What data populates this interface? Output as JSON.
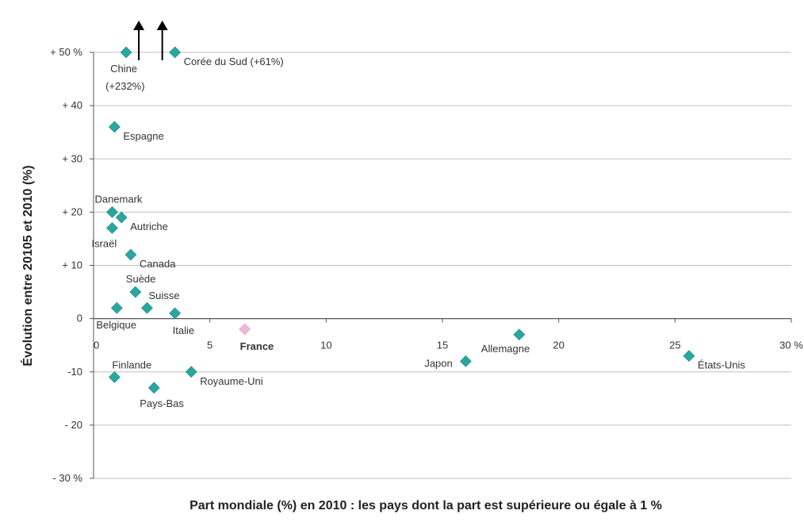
{
  "chart_data": {
    "type": "scatter",
    "xlabel": "Part mondiale (%) en 2010 : les pays dont la part est supérieure ou égale à 1 %",
    "ylabel": "Évolution entre 20105 et 2010 (%)",
    "xlim": [
      0,
      30
    ],
    "ylim": [
      -30,
      50
    ],
    "grid": "horizontal",
    "legend": "none",
    "colors": {
      "point": "#2aa6a0",
      "highlight": "#f0b8d8",
      "grid": "#bfbfbf",
      "axis": "#555555",
      "arrow": "#000000"
    },
    "x_ticks": [
      {
        "value": 0,
        "label": "0"
      },
      {
        "value": 5,
        "label": "5"
      },
      {
        "value": 10,
        "label": "10"
      },
      {
        "value": 15,
        "label": "15"
      },
      {
        "value": 20,
        "label": "20"
      },
      {
        "value": 25,
        "label": "25"
      },
      {
        "value": 30,
        "label": "30 %"
      }
    ],
    "y_ticks": [
      {
        "value": 50,
        "label": "+ 50 %"
      },
      {
        "value": 40,
        "label": "+ 40"
      },
      {
        "value": 30,
        "label": "+ 30"
      },
      {
        "value": 20,
        "label": "+ 20"
      },
      {
        "value": 10,
        "label": "+ 10"
      },
      {
        "value": 0,
        "label": "0"
      },
      {
        "value": -10,
        "label": "-10"
      },
      {
        "value": -20,
        "label": "- 20"
      },
      {
        "value": -30,
        "label": "- 30 %"
      }
    ],
    "points": [
      {
        "name": "Chine",
        "label": "Chine",
        "label2": "(+232%)",
        "x": 1.4,
        "y": 50,
        "highlight": false,
        "arrow": true,
        "anchor": "below"
      },
      {
        "name": "Corée du Sud",
        "label": "Corée du Sud (+61%)",
        "x": 3.5,
        "y": 50,
        "highlight": false,
        "arrow": true,
        "anchor": "right"
      },
      {
        "name": "Espagne",
        "label": "Espagne",
        "x": 0.9,
        "y": 36,
        "highlight": false,
        "anchor": "below-right"
      },
      {
        "name": "Danemark",
        "label": "Danemark",
        "x": 0.8,
        "y": 20,
        "highlight": false,
        "anchor": "above"
      },
      {
        "name": "Autriche",
        "label": "Autriche",
        "x": 1.2,
        "y": 19,
        "highlight": false,
        "anchor": "below-right"
      },
      {
        "name": "Israël",
        "label": "Israël",
        "x": 0.8,
        "y": 17,
        "highlight": false,
        "anchor": "below-left"
      },
      {
        "name": "Canada",
        "label": "Canada",
        "x": 1.6,
        "y": 12,
        "highlight": false,
        "anchor": "right"
      },
      {
        "name": "Suède",
        "label": "Suède",
        "x": 1.8,
        "y": 5,
        "highlight": false,
        "anchor": "above"
      },
      {
        "name": "Suisse",
        "label": "Suisse",
        "x": 2.3,
        "y": 2,
        "highlight": false,
        "anchor": "above-right"
      },
      {
        "name": "Belgique",
        "label": "Belgique",
        "x": 1.0,
        "y": 2,
        "highlight": false,
        "anchor": "below-far"
      },
      {
        "name": "Italie",
        "label": "Italie",
        "x": 3.5,
        "y": 1,
        "highlight": false,
        "anchor": "below-far"
      },
      {
        "name": "France",
        "label": "France",
        "x": 6.5,
        "y": -2,
        "highlight": true,
        "bold": true,
        "anchor": "below-far"
      },
      {
        "name": "Allemagne",
        "label": "Allemagne",
        "x": 18.3,
        "y": -3,
        "highlight": false,
        "anchor": "below-left"
      },
      {
        "name": "Japon",
        "label": "Japon",
        "x": 16.0,
        "y": -8,
        "highlight": false,
        "anchor": "left"
      },
      {
        "name": "États-Unis",
        "label": "États-Unis",
        "x": 25.6,
        "y": -7,
        "highlight": false,
        "anchor": "right"
      },
      {
        "name": "Finlande",
        "label": "Finlande",
        "x": 0.9,
        "y": -11,
        "highlight": false,
        "anchor": "above-high"
      },
      {
        "name": "Royaume-Uni",
        "label": "Royaume-Uni",
        "x": 4.2,
        "y": -10,
        "highlight": false,
        "anchor": "below-right"
      },
      {
        "name": "Pays-Bas",
        "label": "Pays-Bas",
        "x": 2.6,
        "y": -13,
        "highlight": false,
        "anchor": "below"
      }
    ]
  }
}
